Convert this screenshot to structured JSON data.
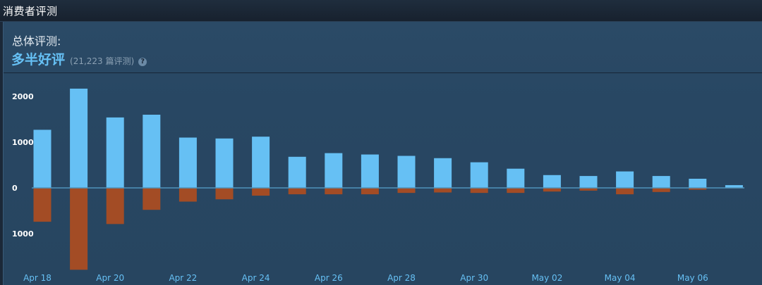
{
  "header": {
    "title": "消费者评测"
  },
  "summary": {
    "label": "总体评测:",
    "rating": "多半好评",
    "count": "(21,223 篇评测)",
    "help_icon": "?"
  },
  "colors": {
    "positive": "#66c0f4",
    "negative": "#a34c25",
    "zero_line": "#4f94bc"
  },
  "chart_data": {
    "type": "bar",
    "categories": [
      "Apr 18",
      "Apr 19",
      "Apr 20",
      "Apr 21",
      "Apr 22",
      "Apr 23",
      "Apr 24",
      "Apr 25",
      "Apr 26",
      "Apr 27",
      "Apr 28",
      "Apr 29",
      "Apr 30",
      "May 01",
      "May 02",
      "May 03",
      "May 04",
      "May 05",
      "May 06",
      "May 07"
    ],
    "x_tick_labels": [
      "Apr 18",
      "Apr 20",
      "Apr 22",
      "Apr 24",
      "Apr 26",
      "Apr 28",
      "Apr 30",
      "May 02",
      "May 04",
      "May 06"
    ],
    "y_tick_labels": [
      "2000",
      "1000",
      "0",
      "1000"
    ],
    "y_ticks": [
      2000,
      1000,
      0,
      -1000
    ],
    "ylim": [
      -1800,
      2200
    ],
    "series": [
      {
        "values": [
          1270,
          2170,
          1540,
          1600,
          1100,
          1080,
          1120,
          680,
          760,
          730,
          700,
          650,
          560,
          420,
          280,
          260,
          360,
          260,
          200,
          60
        ]
      },
      {
        "values": [
          -740,
          -1790,
          -790,
          -480,
          -300,
          -250,
          -170,
          -140,
          -140,
          -140,
          -110,
          -100,
          -110,
          -110,
          -80,
          -60,
          -140,
          -90,
          -40,
          -10
        ]
      }
    ],
    "grid": false,
    "legend": "none"
  }
}
